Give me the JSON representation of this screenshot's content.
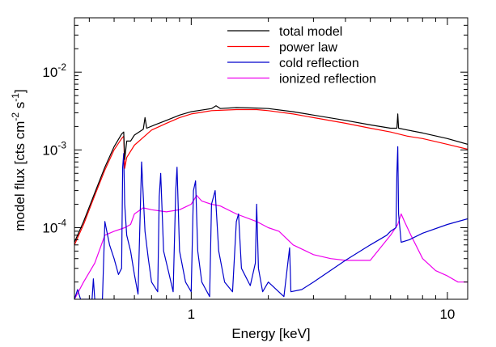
{
  "chart_data": {
    "type": "line",
    "xlabel": "Energy [keV]",
    "ylabel": {
      "base": "model flux [cts cm",
      "exp1": "-2",
      "mid": " s",
      "exp2": "-1",
      "end": "]"
    },
    "xscale": "log",
    "yscale": "log",
    "xlim": [
      0.35,
      12
    ],
    "ylim": [
      1.2e-05,
      0.05
    ],
    "x_ticks": [
      {
        "value": 1,
        "label": "1"
      },
      {
        "value": 10,
        "label": "10"
      }
    ],
    "y_ticks": [
      {
        "value": 0.0001,
        "base": "10",
        "exp": "-4"
      },
      {
        "value": 0.001,
        "base": "10",
        "exp": "-3"
      },
      {
        "value": 0.01,
        "base": "10",
        "exp": "-2"
      }
    ],
    "legend_position": "top-right",
    "series": [
      {
        "name": "total model",
        "color": "#000000",
        "points": [
          [
            0.35,
            6.5e-05
          ],
          [
            0.38,
            0.00012
          ],
          [
            0.42,
            0.00028
          ],
          [
            0.46,
            0.0006
          ],
          [
            0.5,
            0.0011
          ],
          [
            0.535,
            0.0016
          ],
          [
            0.545,
            0.0017
          ],
          [
            0.55,
            0.00075
          ],
          [
            0.56,
            0.0013
          ],
          [
            0.58,
            0.0013
          ],
          [
            0.6,
            0.00155
          ],
          [
            0.65,
            0.00185
          ],
          [
            0.66,
            0.0026
          ],
          [
            0.67,
            0.0019
          ],
          [
            0.72,
            0.0021
          ],
          [
            0.8,
            0.0024
          ],
          [
            0.9,
            0.0028
          ],
          [
            1.0,
            0.0031
          ],
          [
            1.2,
            0.0034
          ],
          [
            1.25,
            0.0037
          ],
          [
            1.3,
            0.0034
          ],
          [
            1.5,
            0.0035
          ],
          [
            1.8,
            0.00345
          ],
          [
            2.0,
            0.0034
          ],
          [
            2.5,
            0.0031
          ],
          [
            3.0,
            0.0028
          ],
          [
            4.0,
            0.0024
          ],
          [
            5.0,
            0.0021
          ],
          [
            6.0,
            0.0019
          ],
          [
            6.35,
            0.0019
          ],
          [
            6.4,
            0.0029
          ],
          [
            6.45,
            0.0019
          ],
          [
            7.0,
            0.0018
          ],
          [
            8.0,
            0.00165
          ],
          [
            10.0,
            0.0014
          ],
          [
            12.0,
            0.00118
          ]
        ]
      },
      {
        "name": "power law",
        "color": "#ff0000",
        "points": [
          [
            0.35,
            6e-05
          ],
          [
            0.38,
            0.00011
          ],
          [
            0.42,
            0.00026
          ],
          [
            0.46,
            0.00055
          ],
          [
            0.5,
            0.001
          ],
          [
            0.535,
            0.0014
          ],
          [
            0.545,
            0.0015
          ],
          [
            0.55,
            0.00058
          ],
          [
            0.56,
            0.0008
          ],
          [
            0.6,
            0.00115
          ],
          [
            0.65,
            0.00145
          ],
          [
            0.7,
            0.0018
          ],
          [
            0.8,
            0.0022
          ],
          [
            0.9,
            0.0026
          ],
          [
            1.0,
            0.0029
          ],
          [
            1.2,
            0.0032
          ],
          [
            1.5,
            0.0033
          ],
          [
            1.8,
            0.0033
          ],
          [
            2.0,
            0.0032
          ],
          [
            2.5,
            0.0029
          ],
          [
            3.0,
            0.0026
          ],
          [
            4.0,
            0.0022
          ],
          [
            5.0,
            0.0019
          ],
          [
            6.0,
            0.0017
          ],
          [
            7.0,
            0.0015
          ],
          [
            8.0,
            0.0014
          ],
          [
            10.0,
            0.00118
          ],
          [
            12.0,
            0.00102
          ]
        ]
      },
      {
        "name": "cold reflection",
        "color": "#0000cc",
        "points": [
          [
            0.35,
            1.2e-05
          ],
          [
            0.36,
            1.6e-05
          ],
          [
            0.37,
            1.2e-05
          ],
          [
            0.41,
            1.2e-05
          ],
          [
            0.415,
            2.2e-05
          ],
          [
            0.42,
            1.2e-05
          ],
          [
            0.45,
            1.2e-05
          ],
          [
            0.46,
            0.00012
          ],
          [
            0.465,
            0.0001
          ],
          [
            0.48,
            6e-05
          ],
          [
            0.5,
            4e-05
          ],
          [
            0.52,
            2.5e-05
          ],
          [
            0.535,
            3e-05
          ],
          [
            0.54,
            0.0006
          ],
          [
            0.545,
            0.0009
          ],
          [
            0.55,
            0.0002
          ],
          [
            0.56,
            8e-05
          ],
          [
            0.58,
            5e-05
          ],
          [
            0.6,
            2.5e-05
          ],
          [
            0.62,
            1.4e-05
          ],
          [
            0.63,
            0.0001
          ],
          [
            0.64,
            0.0007
          ],
          [
            0.66,
            9e-05
          ],
          [
            0.68,
            4e-05
          ],
          [
            0.7,
            2e-05
          ],
          [
            0.74,
            1.5e-05
          ],
          [
            0.75,
            0.00025
          ],
          [
            0.76,
            0.0005
          ],
          [
            0.78,
            5e-05
          ],
          [
            0.82,
            2.5e-05
          ],
          [
            0.85,
            1.5e-05
          ],
          [
            0.87,
            0.0003
          ],
          [
            0.88,
            0.0006
          ],
          [
            0.9,
            5e-05
          ],
          [
            0.95,
            2e-05
          ],
          [
            1.0,
            1.5e-05
          ],
          [
            1.02,
            0.0003
          ],
          [
            1.04,
            0.0004
          ],
          [
            1.06,
            5e-05
          ],
          [
            1.1,
            2e-05
          ],
          [
            1.18,
            1.3e-05
          ],
          [
            1.2,
            0.0002
          ],
          [
            1.24,
            0.0003
          ],
          [
            1.28,
            5e-05
          ],
          [
            1.35,
            2e-05
          ],
          [
            1.45,
            1.5e-05
          ],
          [
            1.5,
            0.00012
          ],
          [
            1.53,
            0.00015
          ],
          [
            1.57,
            3e-05
          ],
          [
            1.7,
            1.8e-05
          ],
          [
            1.78,
            3.5e-05
          ],
          [
            1.8,
            0.0002
          ],
          [
            1.83,
            3e-05
          ],
          [
            1.9,
            1.5e-05
          ],
          [
            2.0,
            2e-05
          ],
          [
            2.3,
            1.3e-05
          ],
          [
            2.42,
            5.5e-05
          ],
          [
            2.45,
            1.5e-05
          ],
          [
            2.7,
            1.6e-05
          ],
          [
            3.0,
            2e-05
          ],
          [
            4.0,
            3.8e-05
          ],
          [
            5.0,
            6e-05
          ],
          [
            5.8,
            8e-05
          ],
          [
            6.0,
            9e-05
          ],
          [
            6.3,
            0.0001
          ],
          [
            6.35,
            0.0005
          ],
          [
            6.4,
            0.0011
          ],
          [
            6.45,
            0.00015
          ],
          [
            6.6,
            6.5e-05
          ],
          [
            7.1,
            7e-05
          ],
          [
            8.0,
            8.5e-05
          ],
          [
            10.0,
            0.00011
          ],
          [
            12.0,
            0.00013
          ]
        ]
      },
      {
        "name": "ionized reflection",
        "color": "#ee00ee",
        "points": [
          [
            0.35,
            1.2e-05
          ],
          [
            0.38,
            2e-05
          ],
          [
            0.42,
            3.5e-05
          ],
          [
            0.46,
            8e-05
          ],
          [
            0.5,
            9e-05
          ],
          [
            0.55,
            0.0001
          ],
          [
            0.58,
            0.00011
          ],
          [
            0.6,
            0.00015
          ],
          [
            0.65,
            0.00018
          ],
          [
            0.7,
            0.00017
          ],
          [
            0.8,
            0.00016
          ],
          [
            0.9,
            0.00017
          ],
          [
            1.0,
            0.0002
          ],
          [
            1.05,
            0.00026
          ],
          [
            1.1,
            0.00022
          ],
          [
            1.2,
            0.0002
          ],
          [
            1.3,
            0.00019
          ],
          [
            1.5,
            0.00015
          ],
          [
            1.8,
            0.00012
          ],
          [
            2.0,
            0.0001
          ],
          [
            2.2,
            9e-05
          ],
          [
            2.5,
            6e-05
          ],
          [
            3.0,
            4.5e-05
          ],
          [
            3.5,
            4e-05
          ],
          [
            4.0,
            3.8e-05
          ],
          [
            5.0,
            3.8e-05
          ],
          [
            6.0,
            8e-05
          ],
          [
            6.4,
            0.00011
          ],
          [
            6.6,
            0.00015
          ],
          [
            6.8,
            0.00012
          ],
          [
            7.2,
            8e-05
          ],
          [
            8.0,
            4e-05
          ],
          [
            9.0,
            2.8e-05
          ],
          [
            10.0,
            2.4e-05
          ],
          [
            11.0,
            2e-05
          ],
          [
            12.0,
            2e-05
          ]
        ]
      }
    ]
  }
}
